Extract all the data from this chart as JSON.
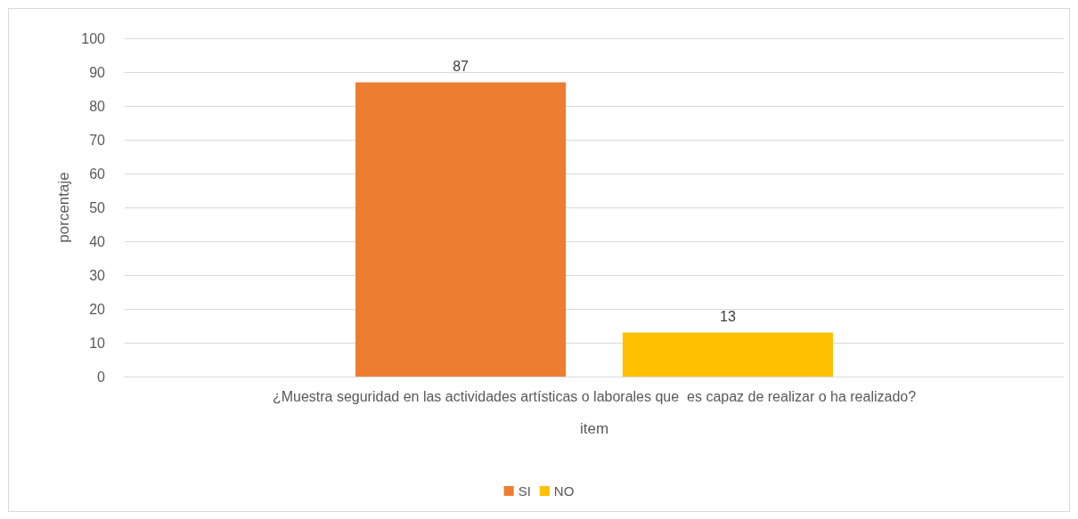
{
  "chart_data": {
    "type": "bar",
    "categories": [
      "¿Muestra seguridad en las actividades artísticas o laborales que  es capaz de realizar o ha realizado?"
    ],
    "series": [
      {
        "name": "SI",
        "color": "#ed7d31",
        "values": [
          87
        ]
      },
      {
        "name": "NO",
        "color": "#ffc000",
        "values": [
          13
        ]
      }
    ],
    "xlabel": "item",
    "ylabel": "porcentaje",
    "ylim": [
      0,
      100
    ],
    "yticks": [
      0,
      10,
      20,
      30,
      40,
      50,
      60,
      70,
      80,
      90,
      100
    ],
    "grid": "y",
    "legend": "bottom",
    "data_labels": true
  }
}
